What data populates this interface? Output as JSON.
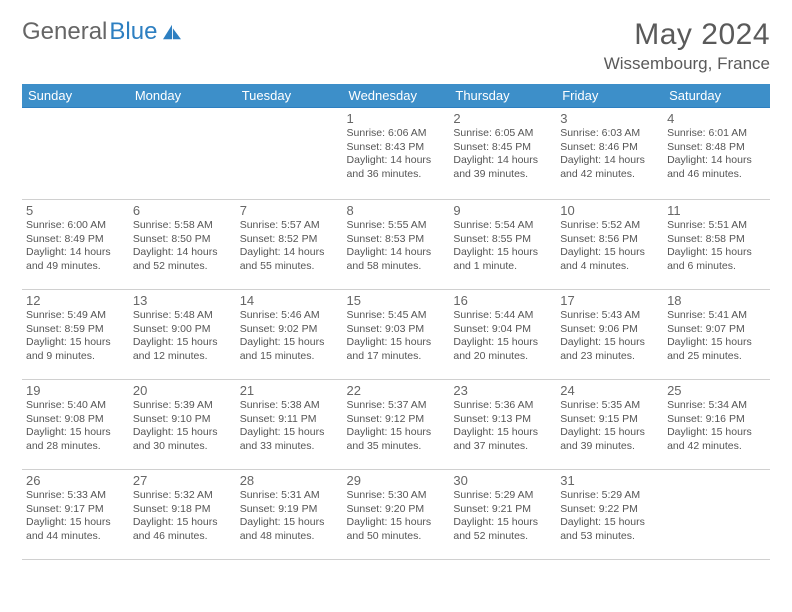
{
  "brand": {
    "part1": "General",
    "part2": "Blue"
  },
  "title": "May 2024",
  "location": "Wissembourg, France",
  "colors": {
    "header_bg": "#3d8fc9",
    "border_blue": "#2d7fc1",
    "text": "#555555",
    "title_text": "#5a5a5a"
  },
  "weekdays": [
    "Sunday",
    "Monday",
    "Tuesday",
    "Wednesday",
    "Thursday",
    "Friday",
    "Saturday"
  ],
  "weeks": [
    [
      null,
      null,
      null,
      {
        "n": "1",
        "sr": "6:06 AM",
        "ss": "8:43 PM",
        "dl": "14 hours and 36 minutes."
      },
      {
        "n": "2",
        "sr": "6:05 AM",
        "ss": "8:45 PM",
        "dl": "14 hours and 39 minutes."
      },
      {
        "n": "3",
        "sr": "6:03 AM",
        "ss": "8:46 PM",
        "dl": "14 hours and 42 minutes."
      },
      {
        "n": "4",
        "sr": "6:01 AM",
        "ss": "8:48 PM",
        "dl": "14 hours and 46 minutes."
      }
    ],
    [
      {
        "n": "5",
        "sr": "6:00 AM",
        "ss": "8:49 PM",
        "dl": "14 hours and 49 minutes."
      },
      {
        "n": "6",
        "sr": "5:58 AM",
        "ss": "8:50 PM",
        "dl": "14 hours and 52 minutes."
      },
      {
        "n": "7",
        "sr": "5:57 AM",
        "ss": "8:52 PM",
        "dl": "14 hours and 55 minutes."
      },
      {
        "n": "8",
        "sr": "5:55 AM",
        "ss": "8:53 PM",
        "dl": "14 hours and 58 minutes."
      },
      {
        "n": "9",
        "sr": "5:54 AM",
        "ss": "8:55 PM",
        "dl": "15 hours and 1 minute."
      },
      {
        "n": "10",
        "sr": "5:52 AM",
        "ss": "8:56 PM",
        "dl": "15 hours and 4 minutes."
      },
      {
        "n": "11",
        "sr": "5:51 AM",
        "ss": "8:58 PM",
        "dl": "15 hours and 6 minutes."
      }
    ],
    [
      {
        "n": "12",
        "sr": "5:49 AM",
        "ss": "8:59 PM",
        "dl": "15 hours and 9 minutes."
      },
      {
        "n": "13",
        "sr": "5:48 AM",
        "ss": "9:00 PM",
        "dl": "15 hours and 12 minutes."
      },
      {
        "n": "14",
        "sr": "5:46 AM",
        "ss": "9:02 PM",
        "dl": "15 hours and 15 minutes."
      },
      {
        "n": "15",
        "sr": "5:45 AM",
        "ss": "9:03 PM",
        "dl": "15 hours and 17 minutes."
      },
      {
        "n": "16",
        "sr": "5:44 AM",
        "ss": "9:04 PM",
        "dl": "15 hours and 20 minutes."
      },
      {
        "n": "17",
        "sr": "5:43 AM",
        "ss": "9:06 PM",
        "dl": "15 hours and 23 minutes."
      },
      {
        "n": "18",
        "sr": "5:41 AM",
        "ss": "9:07 PM",
        "dl": "15 hours and 25 minutes."
      }
    ],
    [
      {
        "n": "19",
        "sr": "5:40 AM",
        "ss": "9:08 PM",
        "dl": "15 hours and 28 minutes."
      },
      {
        "n": "20",
        "sr": "5:39 AM",
        "ss": "9:10 PM",
        "dl": "15 hours and 30 minutes."
      },
      {
        "n": "21",
        "sr": "5:38 AM",
        "ss": "9:11 PM",
        "dl": "15 hours and 33 minutes."
      },
      {
        "n": "22",
        "sr": "5:37 AM",
        "ss": "9:12 PM",
        "dl": "15 hours and 35 minutes."
      },
      {
        "n": "23",
        "sr": "5:36 AM",
        "ss": "9:13 PM",
        "dl": "15 hours and 37 minutes."
      },
      {
        "n": "24",
        "sr": "5:35 AM",
        "ss": "9:15 PM",
        "dl": "15 hours and 39 minutes."
      },
      {
        "n": "25",
        "sr": "5:34 AM",
        "ss": "9:16 PM",
        "dl": "15 hours and 42 minutes."
      }
    ],
    [
      {
        "n": "26",
        "sr": "5:33 AM",
        "ss": "9:17 PM",
        "dl": "15 hours and 44 minutes."
      },
      {
        "n": "27",
        "sr": "5:32 AM",
        "ss": "9:18 PM",
        "dl": "15 hours and 46 minutes."
      },
      {
        "n": "28",
        "sr": "5:31 AM",
        "ss": "9:19 PM",
        "dl": "15 hours and 48 minutes."
      },
      {
        "n": "29",
        "sr": "5:30 AM",
        "ss": "9:20 PM",
        "dl": "15 hours and 50 minutes."
      },
      {
        "n": "30",
        "sr": "5:29 AM",
        "ss": "9:21 PM",
        "dl": "15 hours and 52 minutes."
      },
      {
        "n": "31",
        "sr": "5:29 AM",
        "ss": "9:22 PM",
        "dl": "15 hours and 53 minutes."
      },
      null
    ]
  ],
  "labels": {
    "sunrise_prefix": "Sunrise: ",
    "sunset_prefix": "Sunset: ",
    "daylight_prefix": "Daylight: "
  }
}
